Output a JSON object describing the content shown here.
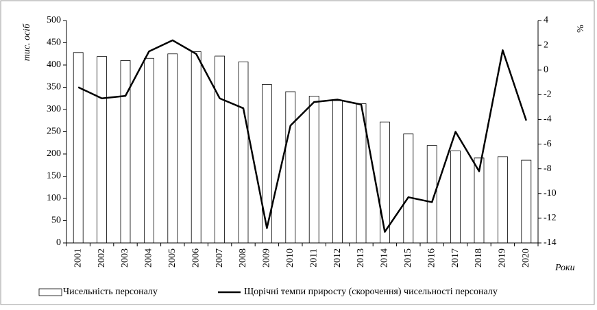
{
  "chart_data": {
    "type": "bar_line",
    "categories": [
      "2001",
      "2002",
      "2003",
      "2004",
      "2005",
      "2006",
      "2007",
      "2008",
      "2009",
      "2010",
      "2011",
      "2012",
      "2013",
      "2014",
      "2015",
      "2016",
      "2017",
      "2018",
      "2019",
      "2020"
    ],
    "series": [
      {
        "name": "Чисельність персоналу",
        "type": "bar",
        "color": "#ffffff",
        "values": [
          428,
          419,
          410,
          415,
          425,
          430,
          420,
          407,
          356,
          340,
          330,
          320,
          313,
          272,
          245,
          219,
          207,
          191,
          194,
          186
        ]
      },
      {
        "name": "Щорічні темпи приросту (скорочення) чисельності персоналу",
        "type": "line",
        "color": "#000000",
        "axis": "y2",
        "values": [
          -1.4,
          -2.3,
          -2.1,
          1.5,
          2.4,
          1.3,
          -2.3,
          -3.1,
          -12.8,
          -4.5,
          -2.6,
          -2.4,
          -2.8,
          -13.1,
          -10.3,
          -10.7,
          -5.0,
          -8.2,
          1.6,
          -4.1
        ]
      }
    ],
    "ylabel": "тис. осіб",
    "y2label": "%",
    "xlabel": "Роки",
    "ylim": [
      0,
      500
    ],
    "yticks": [
      0,
      50,
      100,
      150,
      200,
      250,
      300,
      350,
      400,
      450,
      500
    ],
    "y2lim": [
      -14,
      4
    ],
    "y2ticks": [
      -14,
      -12,
      -10,
      -8,
      -6,
      -4,
      -2,
      0,
      2,
      4
    ],
    "grid": false,
    "legend": "bottom"
  }
}
